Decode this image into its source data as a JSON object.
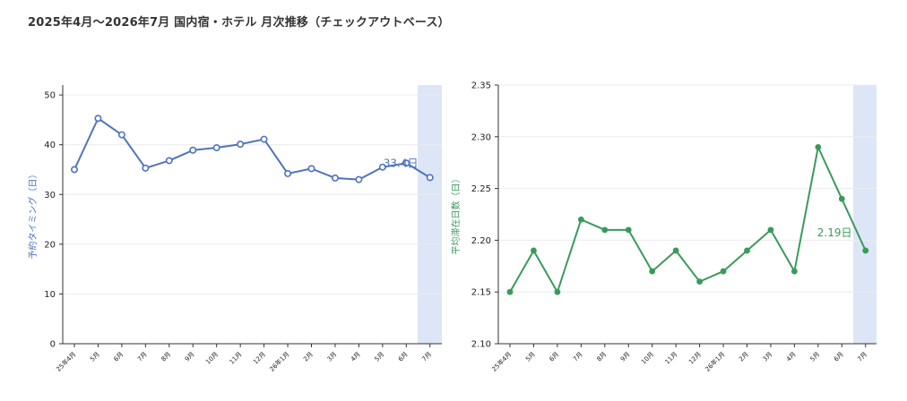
{
  "title": "2025年4月～2026年7月 国内宿・ホテル 月次推移（チェックアウトベース）",
  "chart_data": [
    {
      "type": "line",
      "ylabel": "予約タイミング（日）",
      "ylim": [
        0,
        52
      ],
      "yticks": [
        "0",
        "10",
        "20",
        "30",
        "40",
        "50"
      ],
      "ytick_values": [
        0,
        10,
        20,
        30,
        40,
        50
      ],
      "categories": [
        "25年4月",
        "5月",
        "6月",
        "7月",
        "8月",
        "9月",
        "10月",
        "11月",
        "12月",
        "26年1月",
        "2月",
        "3月",
        "4月",
        "5月",
        "6月",
        "7月"
      ],
      "series": [
        {
          "values": [
            35.0,
            45.3,
            42.0,
            35.3,
            36.8,
            38.9,
            39.4,
            40.1,
            41.1,
            34.2,
            35.2,
            33.3,
            33.0,
            35.5,
            36.3,
            33.4
          ]
        }
      ],
      "annotation": "33.4日",
      "highlight_category": "7月",
      "color": "#4f73be",
      "marker": "hollow-circle",
      "grid": true
    },
    {
      "type": "line",
      "ylabel": "平均滞在日数（日）",
      "ylim": [
        2.1,
        2.35
      ],
      "yticks": [
        "2.10",
        "2.15",
        "2.20",
        "2.25",
        "2.30",
        "2.35"
      ],
      "ytick_values": [
        2.1,
        2.15,
        2.2,
        2.25,
        2.3,
        2.35
      ],
      "categories": [
        "25年4月",
        "5月",
        "6月",
        "7月",
        "8月",
        "9月",
        "10月",
        "11月",
        "12月",
        "26年1月",
        "2月",
        "3月",
        "4月",
        "5月",
        "6月",
        "7月"
      ],
      "series": [
        {
          "values": [
            2.15,
            2.19,
            2.15,
            2.22,
            2.21,
            2.21,
            2.17,
            2.19,
            2.16,
            2.17,
            2.19,
            2.21,
            2.17,
            2.29,
            2.24,
            2.19
          ]
        }
      ],
      "annotation": "2.19日",
      "highlight_category": "7月",
      "color": "#3a9a5c",
      "marker": "filled-circle",
      "grid": true
    }
  ]
}
